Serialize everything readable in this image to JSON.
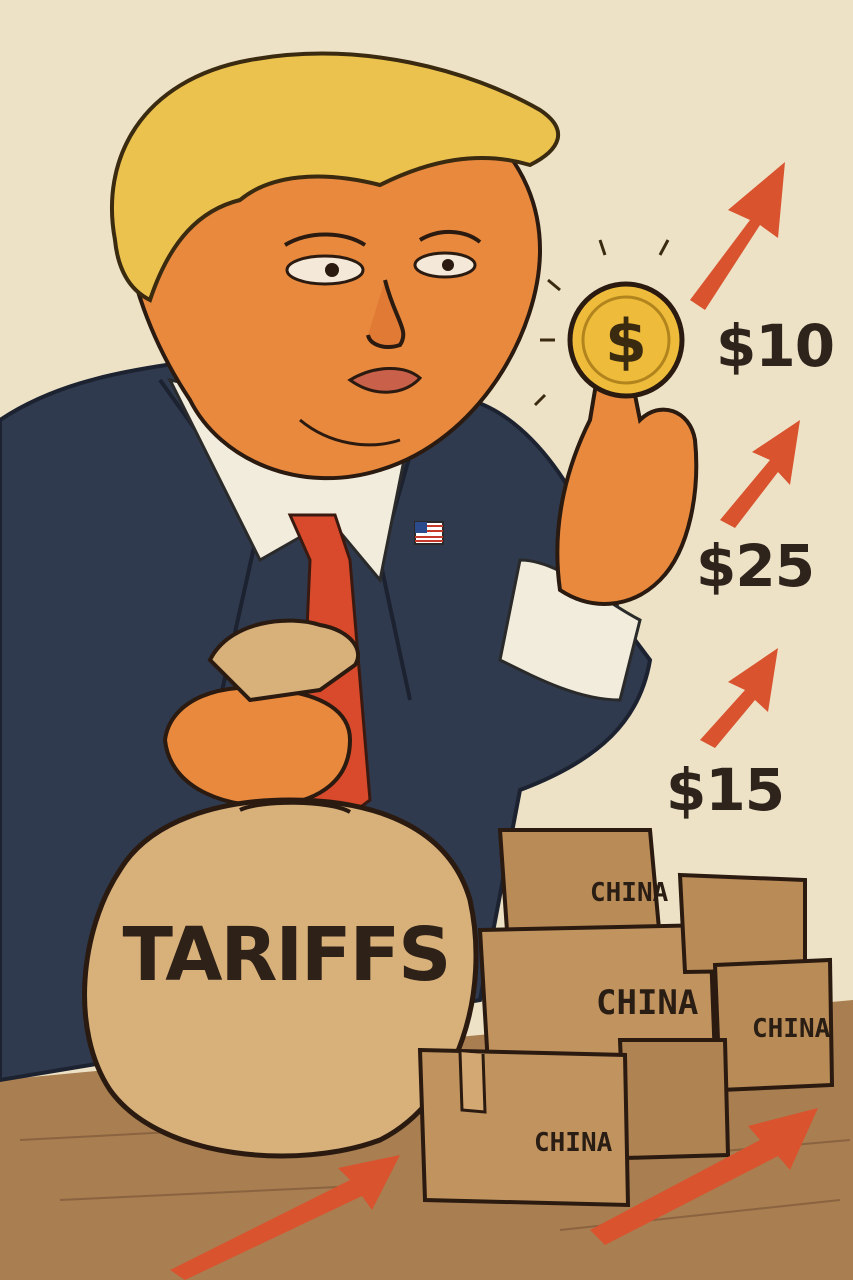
{
  "bag": {
    "label": "TARIFFS"
  },
  "prices": [
    "$10",
    "$25",
    "$15"
  ],
  "boxes": [
    "CHINA",
    "CHINA",
    "CHINA",
    "CHINA"
  ],
  "coin": {
    "symbol": "$"
  },
  "colors": {
    "background": "#ede2c6",
    "arrow": "#d9532f",
    "suit": "#2f3a4e",
    "tie": "#d84a2b",
    "skin": "#e8893e",
    "hair": "#ecc24e",
    "coin": "#eebc3a",
    "bag": "#d8b07a",
    "box": "#b98b57",
    "table": "#a97e50"
  },
  "icons": [
    "up-arrow-icon",
    "dollar-coin-icon",
    "flag-pin-icon"
  ]
}
